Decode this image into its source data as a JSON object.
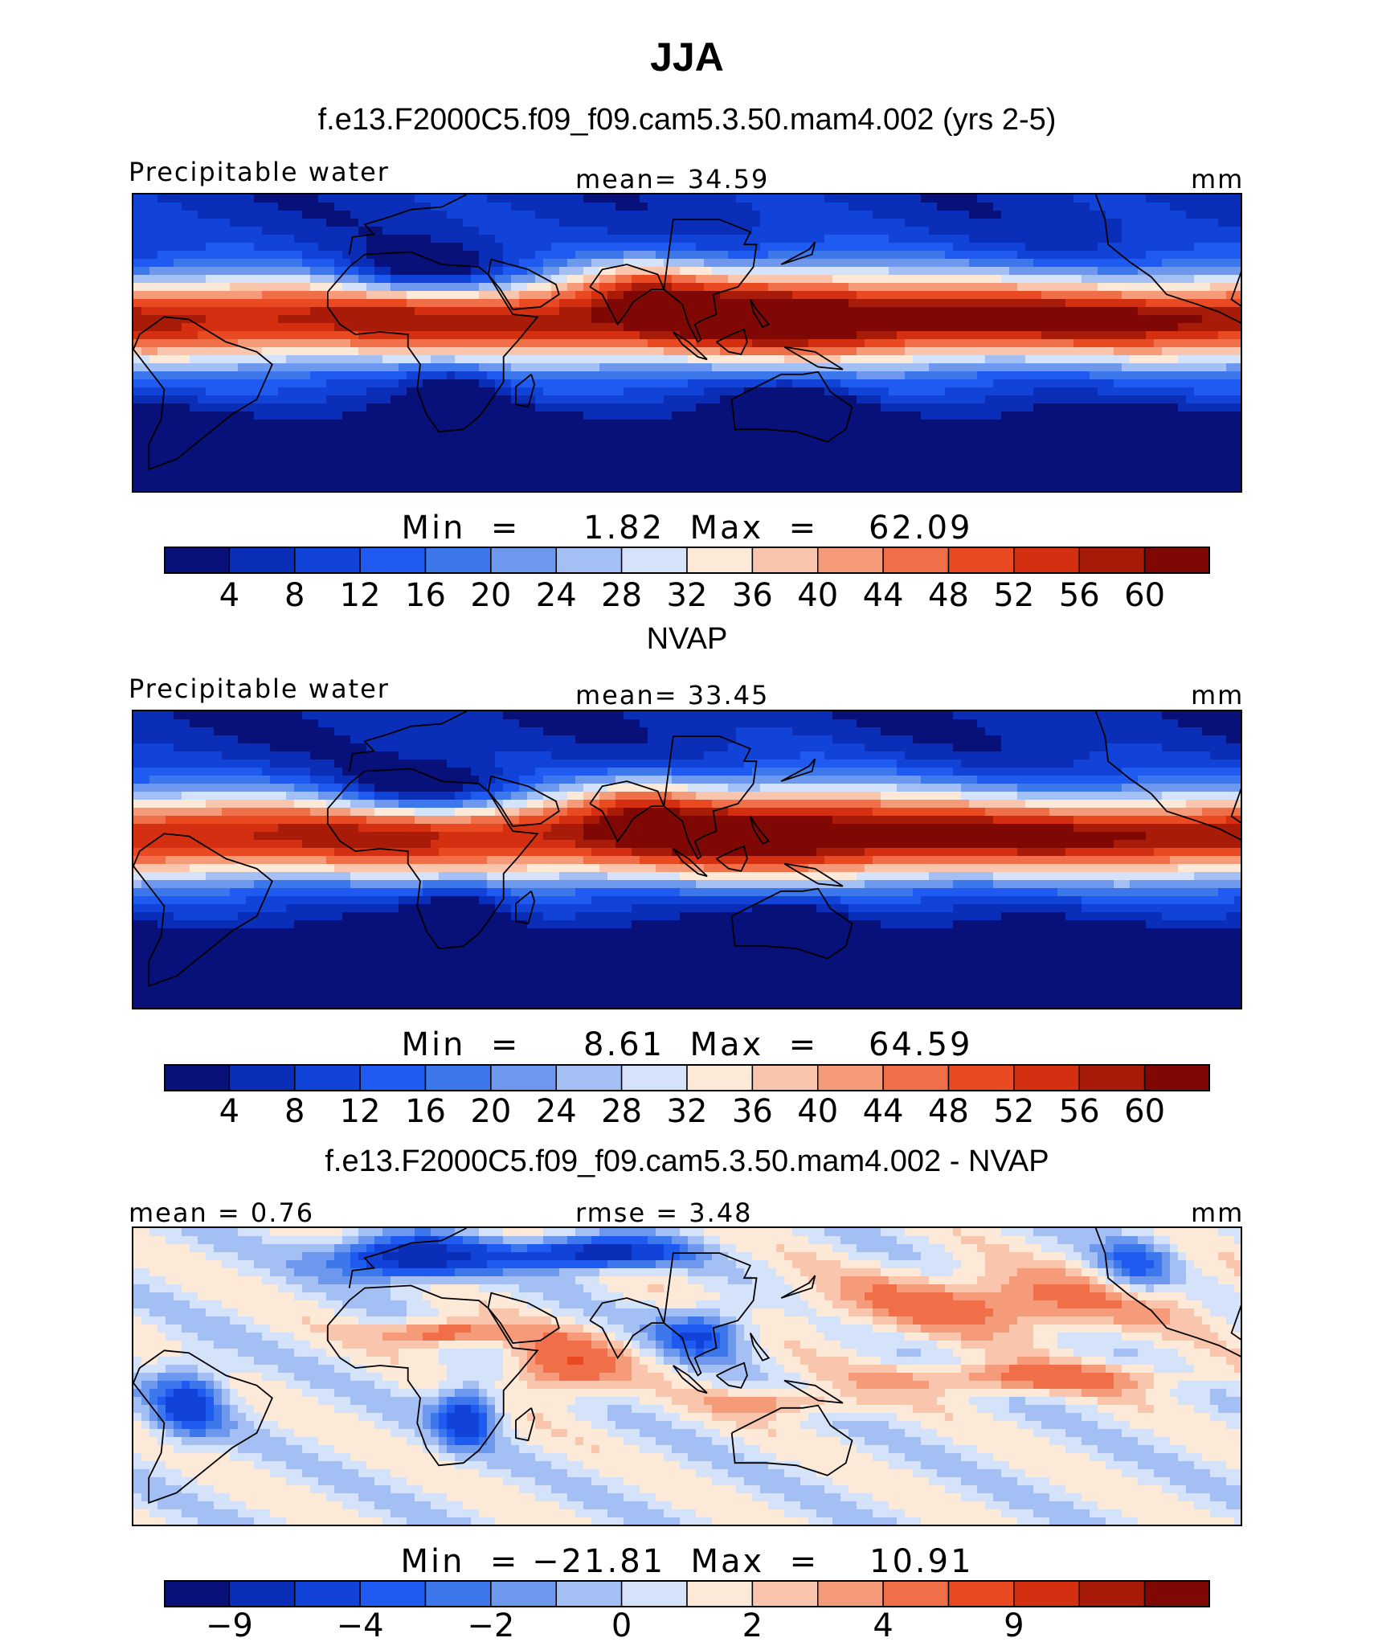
{
  "figure": {
    "title": "JJA",
    "panels": [
      {
        "heading": "f.e13.F2000C5.f09_f09.cam5.3.50.mam4.002 (yrs 2-5)",
        "left_label": "Precipitable water",
        "center_label": "mean=   34.59",
        "right_label": "mm",
        "stats": "Min  =     1.82  Max  =    62.09",
        "colorbar_ticks": [
          "4",
          "8",
          "12",
          "16",
          "20",
          "24",
          "28",
          "32",
          "36",
          "40",
          "44",
          "48",
          "52",
          "56",
          "60"
        ],
        "tick_mode": "boundaries"
      },
      {
        "heading": "NVAP",
        "left_label": "Precipitable water",
        "center_label": "mean=   33.45",
        "right_label": "mm",
        "stats": "Min  =     8.61  Max  =    64.59",
        "colorbar_ticks": [
          "4",
          "8",
          "12",
          "16",
          "20",
          "24",
          "28",
          "32",
          "36",
          "40",
          "44",
          "48",
          "52",
          "56",
          "60"
        ],
        "tick_mode": "boundaries"
      },
      {
        "heading": "f.e13.F2000C5.f09_f09.cam5.3.50.mam4.002 - NVAP",
        "left_label": "mean  =    0.76",
        "center_label": "rmse  =    3.48",
        "right_label": "mm",
        "stats": "Min  = −21.81  Max  =    10.91",
        "colorbar_ticks": [
          "−9",
          "−4",
          "−2",
          "0",
          "2",
          "4",
          "9"
        ],
        "tick_mode": "alternate"
      }
    ]
  },
  "colors": {
    "palette": [
      "#08107a",
      "#0a2eb8",
      "#1243d8",
      "#1f5bf0",
      "#3c77ec",
      "#6e98ee",
      "#a4bff4",
      "#d4e3fa",
      "#fde9d8",
      "#f9c5ad",
      "#f59b7a",
      "#f06e48",
      "#ea4a22",
      "#d42f10",
      "#a81b08",
      "#800804"
    ],
    "coast": "#000000",
    "frame": "#000000"
  }
}
